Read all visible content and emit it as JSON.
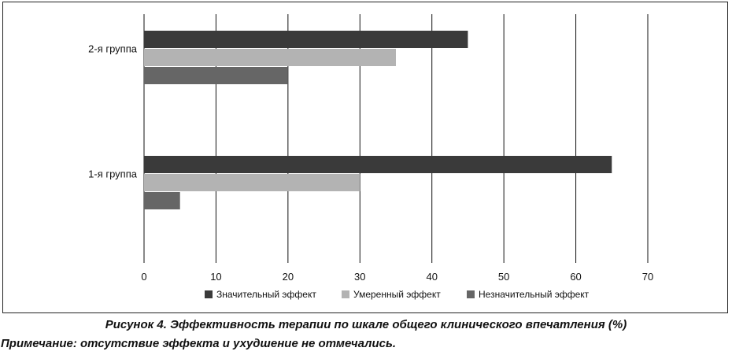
{
  "figure": {
    "caption": "Рисунок 4. Эффективность терапии по шкале общего клинического впечатления (%)",
    "note": "Примечание: отсутствие эффекта и ухудшение не отмечались."
  },
  "chart_data": {
    "type": "bar",
    "orientation": "horizontal",
    "categories": [
      "2-я группа",
      "1-я группа"
    ],
    "series": [
      {
        "name": "Значительный эффект",
        "values": [
          45,
          65
        ],
        "color": "#3a3a3a"
      },
      {
        "name": "Умеренный эффект",
        "values": [
          35,
          30
        ],
        "color": "#b3b3b3"
      },
      {
        "name": "Незначительный эффект",
        "values": [
          20,
          5
        ],
        "color": "#666666"
      }
    ],
    "xlim": [
      0,
      70
    ],
    "xticks": [
      0,
      10,
      20,
      30,
      40,
      50,
      60,
      70
    ],
    "grid": "vertical",
    "legend_position": "bottom"
  }
}
